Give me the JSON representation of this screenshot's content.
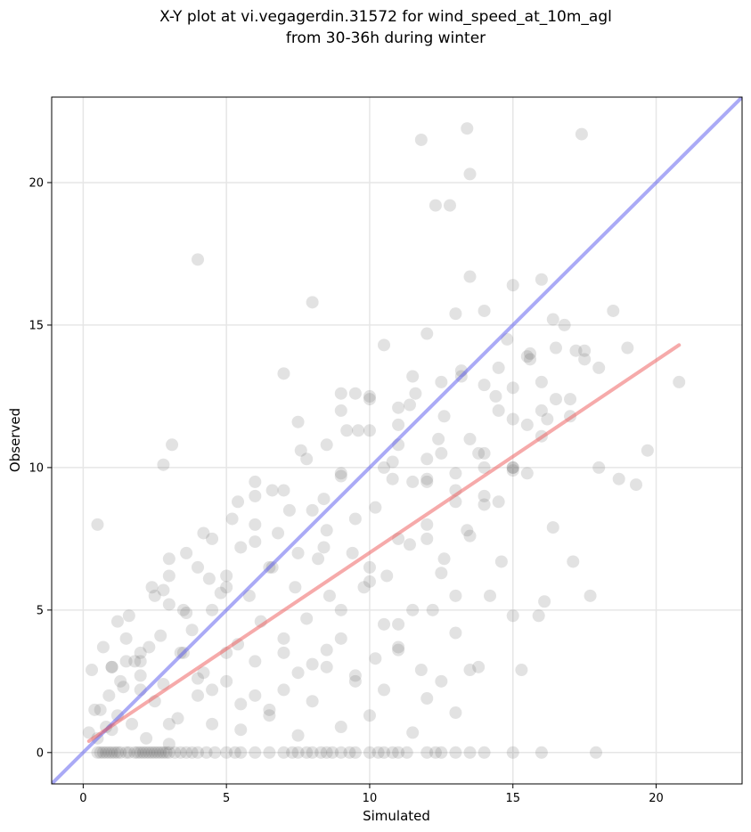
{
  "chart_data": {
    "type": "scatter",
    "title_line1": "X-Y plot at vi.vegagerdin.31572 for wind_speed_at_10m_agl",
    "title_line2": "from 30-36h during winter",
    "xlabel": "Simulated",
    "ylabel": "Observed",
    "xlim": [
      -1.1,
      23.0
    ],
    "ylim": [
      -1.1,
      23.0
    ],
    "xticks": [
      0,
      5,
      10,
      15,
      20
    ],
    "yticks": [
      0,
      5,
      10,
      15,
      20
    ],
    "grid": true,
    "colors": {
      "points": "#555555",
      "identity_line": "#5555ee",
      "regression_line": "#ee5555",
      "grid": "#e6e6e6"
    },
    "lines": [
      {
        "name": "identity",
        "x": [
          -1.1,
          23.0
        ],
        "y": [
          -1.1,
          23.0
        ]
      },
      {
        "name": "regression",
        "x": [
          0.2,
          20.8
        ],
        "y": [
          0.4,
          14.3
        ]
      }
    ],
    "series": [
      {
        "x": [
          0.5,
          0.6,
          0.7,
          0.8,
          0.9,
          1.0,
          1.1,
          1.2,
          1.3,
          1.5,
          1.6,
          1.8,
          1.9,
          2.0,
          2.1,
          2.2,
          2.3,
          2.4,
          2.5,
          2.6,
          2.7,
          2.8,
          2.9,
          3.0,
          3.2,
          3.4,
          3.6,
          3.8,
          4.0,
          4.3,
          4.6,
          5.0,
          5.3,
          5.5,
          6.0,
          6.5,
          7.0,
          7.3,
          7.5,
          7.8,
          8.0,
          8.3,
          8.5,
          8.7,
          9.0,
          9.3,
          9.5,
          10.0,
          10.3,
          10.5,
          10.8,
          11.0,
          11.3,
          12.0,
          12.3,
          12.5,
          13.0,
          13.5,
          14.0,
          15.0,
          16.0,
          17.9,
          0.2,
          0.3,
          0.4,
          0.5,
          0.7,
          0.9,
          1.0,
          1.2,
          1.4,
          1.5,
          1.7,
          2.0,
          2.2,
          2.5,
          2.8,
          3.0,
          3.3,
          3.5,
          4.0,
          4.5,
          5.0,
          5.5,
          6.0,
          6.5,
          7.0,
          7.5,
          8.0,
          8.5,
          9.0,
          9.5,
          10.0,
          10.5,
          11.0,
          11.5,
          12.0,
          12.5,
          13.0,
          13.5,
          0.6,
          0.8,
          1.0,
          1.3,
          1.6,
          2.0,
          2.3,
          2.7,
          3.0,
          3.4,
          3.8,
          4.2,
          4.5,
          5.0,
          5.4,
          5.8,
          6.2,
          6.6,
          7.0,
          7.4,
          7.8,
          8.2,
          8.6,
          9.0,
          9.4,
          9.8,
          10.2,
          10.6,
          11.0,
          11.4,
          11.8,
          12.2,
          12.6,
          13.0,
          13.4,
          13.8,
          14.2,
          14.6,
          15.0,
          1.0,
          1.5,
          2.0,
          2.5,
          3.0,
          3.5,
          4.0,
          4.5,
          5.0,
          5.5,
          6.0,
          6.5,
          7.0,
          7.5,
          8.0,
          8.5,
          9.0,
          9.5,
          10.0,
          10.5,
          11.0,
          11.5,
          12.0,
          12.5,
          13.0,
          13.5,
          14.0,
          14.5,
          15.0,
          15.5,
          16.0,
          1.2,
          1.8,
          2.4,
          3.0,
          3.6,
          4.2,
          4.8,
          5.4,
          6.0,
          6.6,
          7.2,
          7.8,
          8.4,
          9.0,
          9.6,
          10.2,
          10.8,
          11.4,
          12.0,
          12.6,
          13.2,
          13.8,
          14.4,
          15.0,
          15.6,
          16.2,
          16.8,
          2.0,
          2.8,
          3.6,
          4.4,
          5.2,
          6.0,
          6.8,
          7.6,
          8.4,
          9.2,
          10.0,
          10.8,
          11.6,
          12.4,
          13.2,
          14.0,
          14.8,
          15.6,
          16.4,
          17.2,
          3.0,
          4.0,
          5.0,
          6.0,
          7.0,
          8.0,
          9.0,
          10.0,
          11.0,
          12.0,
          13.0,
          14.0,
          15.0,
          16.0,
          17.0,
          18.0,
          4.5,
          5.5,
          6.5,
          7.5,
          8.5,
          9.5,
          10.5,
          11.5,
          12.5,
          13.5,
          14.5,
          15.5,
          16.5,
          17.5,
          18.5,
          6.0,
          7.0,
          8.0,
          9.0,
          10.0,
          11.0,
          12.0,
          13.0,
          14.0,
          15.0,
          16.0,
          17.0,
          18.0,
          19.0,
          7.5,
          8.5,
          9.5,
          10.5,
          11.5,
          12.5,
          13.5,
          14.5,
          15.5,
          16.5,
          17.5,
          9.0,
          10.0,
          11.0,
          12.0,
          13.0,
          14.0,
          15.0,
          16.0,
          11.0,
          12.0,
          13.0,
          14.0,
          15.0,
          0.5,
          4.0,
          11.8,
          13.4,
          13.5,
          17.4,
          12.3,
          12.8,
          2.8,
          3.1,
          18.7,
          19.7,
          20.8,
          19.3,
          17.7,
          17.1,
          16.1,
          15.9,
          16.4,
          15.3
        ],
        "y": [
          0,
          0,
          0,
          0,
          0,
          0,
          0,
          0,
          0,
          0,
          0,
          0,
          0,
          0,
          0,
          0,
          0,
          0,
          0,
          0,
          0,
          0,
          0,
          0,
          0,
          0,
          0,
          0,
          0,
          0,
          0,
          0,
          0,
          0,
          0,
          0,
          0,
          0,
          0,
          0,
          0,
          0,
          0,
          0,
          0,
          0,
          0,
          0,
          0,
          0,
          0,
          0,
          0,
          0,
          0,
          0,
          0,
          0,
          0,
          0,
          0,
          0,
          0.7,
          2.9,
          1.5,
          0.5,
          3.7,
          2.0,
          0.8,
          1.3,
          2.3,
          3.2,
          1.0,
          2.7,
          0.5,
          1.8,
          2.4,
          0.3,
          1.2,
          3.5,
          2.0,
          1.0,
          2.5,
          0.8,
          3.2,
          1.5,
          2.2,
          0.6,
          1.8,
          3.0,
          0.9,
          2.7,
          1.3,
          2.2,
          3.6,
          0.7,
          1.9,
          2.5,
          1.4,
          2.9,
          1.5,
          0.9,
          3.0,
          2.5,
          4.8,
          2.2,
          3.7,
          4.1,
          5.2,
          3.5,
          4.3,
          2.8,
          5.0,
          6.2,
          3.8,
          5.5,
          4.6,
          6.5,
          3.5,
          5.8,
          4.7,
          6.8,
          5.5,
          4.0,
          7.0,
          5.8,
          3.3,
          6.2,
          4.5,
          7.3,
          2.9,
          5.0,
          6.8,
          4.2,
          7.8,
          3.0,
          5.5,
          6.7,
          4.8,
          3.0,
          4.0,
          3.5,
          5.5,
          6.2,
          5.0,
          6.5,
          7.5,
          5.8,
          7.2,
          8.0,
          6.5,
          9.2,
          7.0,
          8.5,
          7.8,
          9.7,
          8.2,
          6.5,
          10.0,
          7.5,
          9.5,
          8.0,
          10.5,
          8.8,
          11.0,
          9.0,
          12.0,
          10.0,
          11.5,
          13.0,
          4.6,
          3.2,
          5.8,
          6.8,
          4.9,
          7.7,
          5.6,
          8.8,
          7.4,
          9.2,
          8.5,
          10.3,
          7.2,
          9.8,
          11.3,
          8.6,
          10.2,
          12.2,
          9.5,
          11.8,
          13.2,
          10.5,
          12.5,
          12.8,
          14.0,
          11.7,
          15.0,
          3.2,
          5.7,
          7.0,
          6.1,
          8.2,
          9.5,
          7.7,
          10.6,
          8.9,
          11.3,
          12.4,
          9.6,
          12.6,
          11.0,
          13.4,
          12.9,
          14.5,
          13.8,
          15.2,
          14.1,
          1.0,
          2.6,
          3.5,
          2.0,
          4.0,
          3.1,
          5.0,
          6.0,
          3.7,
          7.5,
          5.5,
          8.7,
          9.9,
          11.1,
          12.4,
          13.5,
          2.2,
          1.7,
          1.3,
          2.8,
          3.6,
          2.5,
          4.5,
          5.0,
          6.3,
          7.6,
          8.8,
          9.8,
          12.4,
          13.8,
          15.5,
          9.0,
          13.3,
          15.8,
          12.6,
          12.5,
          11.5,
          10.3,
          9.2,
          10.5,
          11.7,
          12.0,
          11.8,
          10.0,
          14.2,
          11.6,
          10.8,
          12.6,
          14.3,
          13.2,
          13.0,
          16.7,
          13.5,
          13.9,
          14.2,
          14.1,
          12.0,
          11.3,
          12.1,
          14.7,
          15.4,
          15.5,
          16.4,
          16.6,
          10.8,
          9.6,
          9.8,
          10.0,
          10.0,
          8.0,
          17.3,
          21.5,
          21.9,
          20.3,
          21.7,
          19.2,
          19.2,
          10.1,
          10.8,
          9.6,
          10.6,
          13.0,
          9.4,
          5.5,
          6.7,
          5.3,
          4.8,
          7.9,
          2.9
        ]
      }
    ]
  }
}
